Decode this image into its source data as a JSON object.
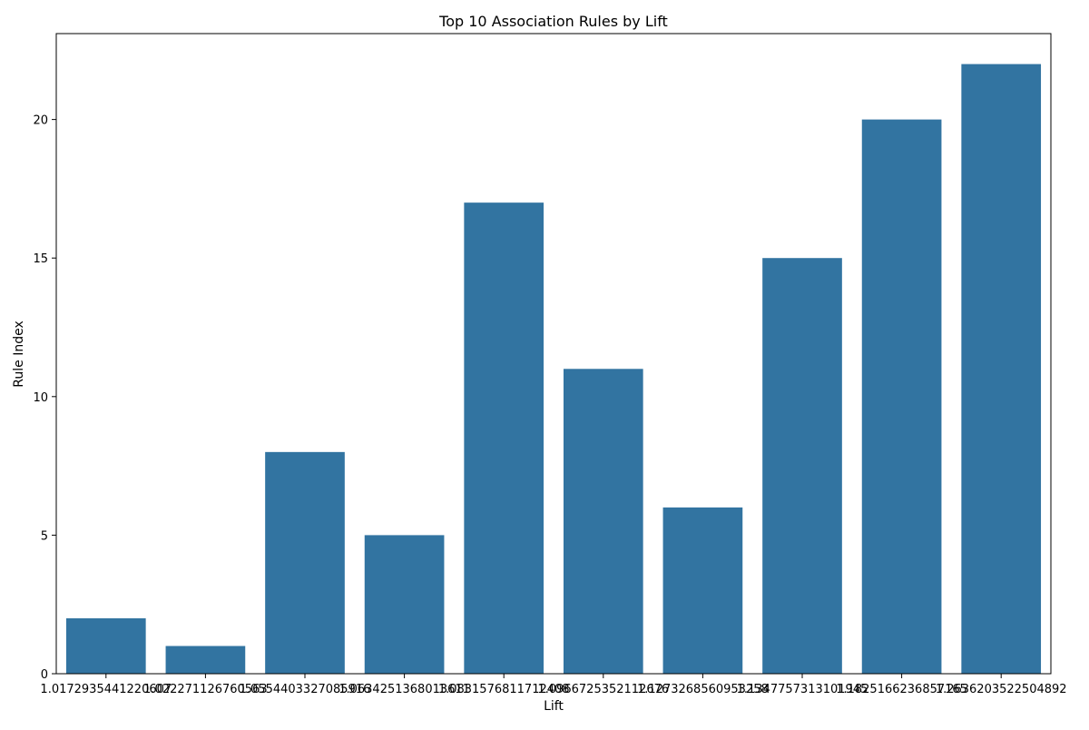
{
  "chart_data": {
    "type": "bar",
    "title": "Top 10 Association Rules by Lift",
    "xlabel": "Lift",
    "ylabel": "Rule Index",
    "categories": [
      "1.0172935441220607",
      "1.022271126760563",
      "1.0554403327085916",
      "1.0634251368013611",
      "1.0831576811712408",
      "1.0966725352112676",
      "1.1273268560953258",
      "1.1347757313101945",
      "1.1825166236857165",
      "1.2636203522504892"
    ],
    "values": [
      2,
      1,
      8,
      5,
      17,
      11,
      6,
      15,
      20,
      22
    ],
    "ylim": [
      0,
      23.1
    ],
    "yticks": [
      0,
      5,
      10,
      15,
      20
    ],
    "grid": false,
    "bar_color": "#3274a1"
  }
}
